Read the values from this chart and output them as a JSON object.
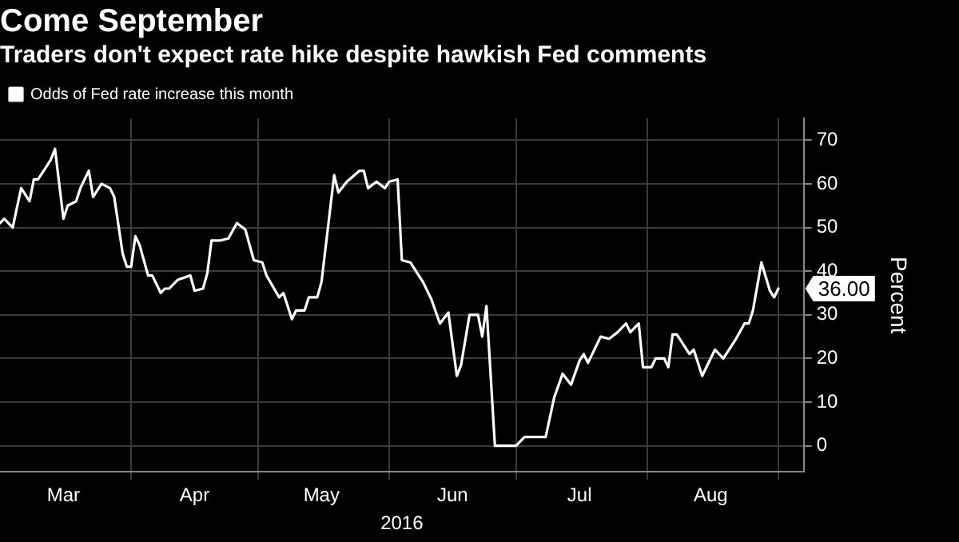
{
  "chart_data": {
    "type": "line",
    "title": "Come September",
    "subtitle": "Traders don't expect rate hike despite hawkish Fed comments",
    "xlabel": "2016",
    "ylabel": "Percent",
    "legend": "top left",
    "grid": true,
    "marker": "none",
    "line_style": "solid",
    "xlim": [
      "2016-03-01",
      "2016-09-07"
    ],
    "xticks": [
      {
        "value": "2016-03-16",
        "label": "Mar"
      },
      {
        "value": "2016-04-01",
        "label": null
      },
      {
        "value": "2016-04-16",
        "label": "Apr"
      },
      {
        "value": "2016-05-01",
        "label": null
      },
      {
        "value": "2016-05-16",
        "label": "May"
      },
      {
        "value": "2016-06-01",
        "label": null
      },
      {
        "value": "2016-06-16",
        "label": "Jun"
      },
      {
        "value": "2016-07-01",
        "label": null
      },
      {
        "value": "2016-07-16",
        "label": "Jul"
      },
      {
        "value": "2016-08-01",
        "label": null
      },
      {
        "value": "2016-08-16",
        "label": "Aug"
      },
      {
        "value": "2016-09-01",
        "label": null
      }
    ],
    "ylim": [
      -6,
      75
    ],
    "yticks": [
      0,
      10,
      20,
      30,
      40,
      50,
      60,
      70
    ],
    "x": [
      "2016-03-01",
      "2016-03-02",
      "2016-03-04",
      "2016-03-06",
      "2016-03-08",
      "2016-03-09",
      "2016-03-10",
      "2016-03-12",
      "2016-03-13",
      "2016-03-14",
      "2016-03-16",
      "2016-03-17",
      "2016-03-19",
      "2016-03-20",
      "2016-03-22",
      "2016-03-23",
      "2016-03-25",
      "2016-03-27",
      "2016-03-28",
      "2016-03-30",
      "2016-03-31",
      "2016-04-01",
      "2016-04-02",
      "2016-04-03",
      "2016-04-05",
      "2016-04-06",
      "2016-04-08",
      "2016-04-09",
      "2016-04-10",
      "2016-04-12",
      "2016-04-15",
      "2016-04-16",
      "2016-04-18",
      "2016-04-19",
      "2016-04-20",
      "2016-04-22",
      "2016-04-24",
      "2016-04-26",
      "2016-04-28",
      "2016-04-30",
      "2016-05-02",
      "2016-05-03",
      "2016-05-06",
      "2016-05-07",
      "2016-05-09",
      "2016-05-10",
      "2016-05-12",
      "2016-05-13",
      "2016-05-15",
      "2016-05-16",
      "2016-05-19",
      "2016-05-20",
      "2016-05-22",
      "2016-05-25",
      "2016-05-26",
      "2016-05-27",
      "2016-05-29",
      "2016-05-31",
      "2016-06-01",
      "2016-06-03",
      "2016-06-04",
      "2016-06-06",
      "2016-06-08",
      "2016-06-09",
      "2016-06-11",
      "2016-06-13",
      "2016-06-15",
      "2016-06-17",
      "2016-06-18",
      "2016-06-20",
      "2016-06-22",
      "2016-06-23",
      "2016-06-24",
      "2016-06-26",
      "2016-07-01",
      "2016-07-03",
      "2016-07-08",
      "2016-07-10",
      "2016-07-12",
      "2016-07-14",
      "2016-07-16",
      "2016-07-17",
      "2016-07-18",
      "2016-07-21",
      "2016-07-23",
      "2016-07-25",
      "2016-07-27",
      "2016-07-28",
      "2016-07-30",
      "2016-07-31",
      "2016-08-02",
      "2016-08-03",
      "2016-08-05",
      "2016-08-06",
      "2016-08-07",
      "2016-08-08",
      "2016-08-11",
      "2016-08-12",
      "2016-08-14",
      "2016-08-15",
      "2016-08-17",
      "2016-08-19",
      "2016-08-22",
      "2016-08-24",
      "2016-08-25",
      "2016-08-26",
      "2016-08-28",
      "2016-08-30",
      "2016-08-31",
      "2016-09-01"
    ],
    "series": [
      {
        "name": "Odds of Fed rate increase this month",
        "color": "#ffffff",
        "values": [
          51,
          52,
          50,
          59,
          56,
          61,
          61,
          64,
          65.5,
          68,
          52,
          55,
          56,
          59,
          63,
          57,
          60,
          59,
          57,
          44,
          41,
          41,
          48,
          46,
          39,
          39,
          35,
          36,
          36,
          38,
          39,
          35.5,
          36,
          39.5,
          47,
          47,
          47.5,
          51,
          49.5,
          42.5,
          42,
          39,
          34,
          35,
          29,
          31,
          31,
          34,
          34,
          37.5,
          62,
          58,
          60.5,
          63,
          63,
          59,
          60.5,
          59,
          60.5,
          61,
          42.5,
          42,
          39,
          37.5,
          33.5,
          28,
          30.5,
          16,
          18.5,
          30,
          30,
          25,
          32,
          0,
          0,
          2,
          2,
          11,
          16.5,
          14,
          19.5,
          21,
          19,
          25,
          24.5,
          26,
          28,
          26,
          28,
          18,
          18,
          20,
          20,
          18,
          25.5,
          25.5,
          21,
          22,
          16,
          18,
          22,
          20,
          24.5,
          28,
          28,
          31,
          42,
          35.5,
          34,
          36
        ]
      }
    ],
    "annotations": [
      "36.00"
    ]
  }
}
